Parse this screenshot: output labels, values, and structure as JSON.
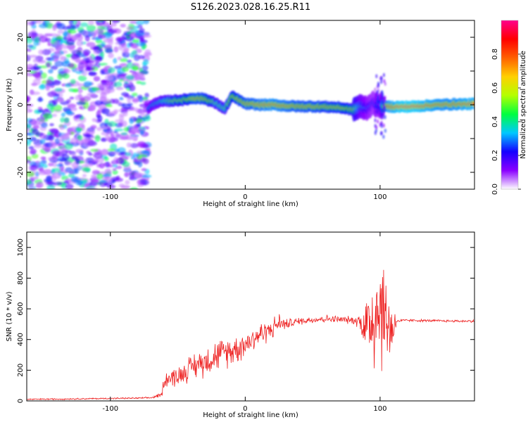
{
  "figure": {
    "title": "S126.2023.028.16.25.R11"
  },
  "chart_data": [
    {
      "type": "heatmap",
      "xlabel": "Height of straight line (km)",
      "ylabel": "Frequency (Hz)",
      "xlim": [
        -162,
        170
      ],
      "ylim": [
        -25,
        25
      ],
      "xticks": [
        -100,
        0,
        100
      ],
      "xtick_labels": [
        "-100",
        "0",
        "100"
      ],
      "yticks": [
        -20,
        -10,
        0,
        10,
        20
      ],
      "ytick_labels": [
        "-20",
        "-10",
        "0",
        "10",
        "20"
      ],
      "colorbar": {
        "label": "Normalized spectral amplitude",
        "range": [
          0,
          1
        ],
        "ticks": [
          0.0,
          0.2,
          0.4,
          0.6,
          0.8
        ],
        "tick_labels": [
          "0.0",
          "0.2",
          "0.4",
          "0.6",
          "0.8"
        ],
        "colors": [
          "#ffffff",
          "#8a00ff",
          "#1400ff",
          "#00c8ff",
          "#00ff40",
          "#b4ff00",
          "#ffd000",
          "#ff6000",
          "#ff0000",
          "#ff008c"
        ]
      },
      "noise_region_x": [
        -162,
        -72
      ],
      "ridge": {
        "x": [
          -72,
          -65,
          -55,
          -45,
          -38,
          -30,
          -22,
          -15,
          -10,
          -5,
          0,
          10,
          20,
          30,
          40,
          50,
          60,
          70,
          80,
          85,
          90,
          95,
          100,
          105,
          115,
          125,
          135,
          145,
          155,
          165,
          170
        ],
        "freq": [
          -1.0,
          0.8,
          1.2,
          1.5,
          2.0,
          1.8,
          0.5,
          -1.2,
          2.5,
          1.5,
          0.3,
          0.0,
          0.0,
          -0.3,
          -0.5,
          -0.5,
          -0.6,
          -0.8,
          -1.5,
          -0.5,
          -1.0,
          0.5,
          -0.5,
          -0.5,
          -0.6,
          -0.5,
          -0.2,
          0.0,
          0.2,
          0.2,
          0.3
        ],
        "amp": [
          0.35,
          0.4,
          0.55,
          0.6,
          0.75,
          0.7,
          0.5,
          0.5,
          0.65,
          0.7,
          0.75,
          0.8,
          0.85,
          0.8,
          0.75,
          0.75,
          0.7,
          0.7,
          0.6,
          0.4,
          0.3,
          0.25,
          0.3,
          0.85,
          0.95,
          0.95,
          0.9,
          0.85,
          0.85,
          0.9,
          0.9
        ]
      }
    },
    {
      "type": "line",
      "xlabel": "Height of straight line (km)",
      "ylabel": "SNR (10 * v/v)",
      "xlim": [
        -162,
        170
      ],
      "ylim": [
        0,
        1100
      ],
      "xticks": [
        -100,
        0,
        100
      ],
      "xtick_labels": [
        "-100",
        "0",
        "100"
      ],
      "yticks": [
        0,
        200,
        400,
        600,
        800,
        1000
      ],
      "ytick_labels": [
        "0",
        "200",
        "400",
        "600",
        "800",
        "1000"
      ],
      "color": "#ee2222",
      "series": [
        {
          "x": [
            -162,
            -140,
            -120,
            -100,
            -80,
            -70,
            -62,
            -60,
            -50,
            -40,
            -30,
            -20,
            -10,
            0,
            10,
            20,
            25,
            30,
            40,
            50,
            60,
            70,
            80,
            85,
            90,
            95,
            100,
            105,
            110,
            112,
            120,
            140,
            160,
            170
          ],
          "y": [
            10,
            12,
            14,
            16,
            18,
            20,
            40,
            140,
            160,
            220,
            260,
            300,
            330,
            370,
            430,
            470,
            510,
            500,
            520,
            530,
            535,
            530,
            525,
            520,
            480,
            560,
            640,
            500,
            480,
            520,
            525,
            522,
            520,
            520
          ],
          "spread": [
            6,
            6,
            6,
            6,
            6,
            6,
            20,
            70,
            80,
            100,
            120,
            120,
            120,
            110,
            100,
            80,
            80,
            40,
            30,
            30,
            30,
            30,
            30,
            60,
            300,
            500,
            550,
            350,
            250,
            15,
            10,
            10,
            10,
            10
          ]
        }
      ]
    }
  ]
}
